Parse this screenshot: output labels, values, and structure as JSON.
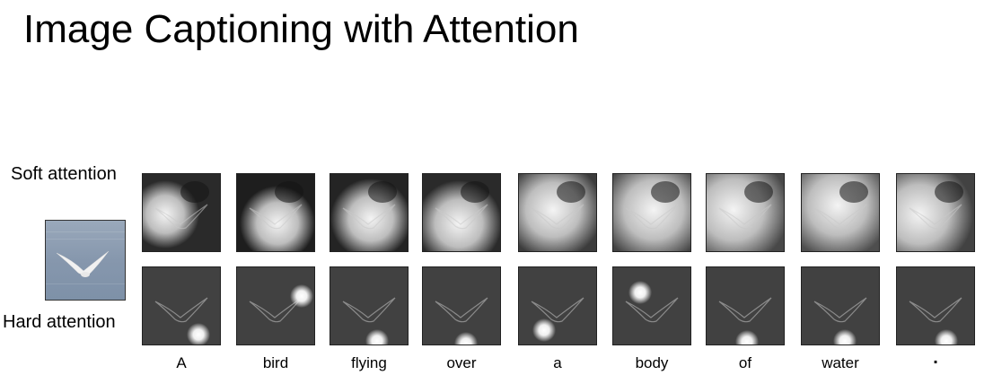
{
  "title": "Image Captioning with Attention",
  "rows": {
    "soft_label": "Soft attention",
    "hard_label": "Hard attention"
  },
  "words": [
    "A",
    "bird",
    "flying",
    "over",
    "a",
    "body",
    "of",
    "water",
    "."
  ]
}
